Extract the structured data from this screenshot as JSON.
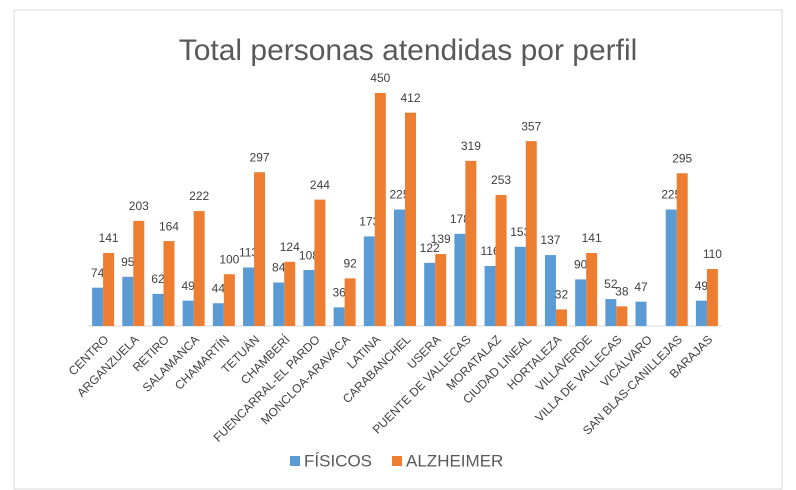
{
  "chart_data": {
    "type": "bar",
    "title": "Total personas atendidas por perfil",
    "categories": [
      "CENTRO",
      "ARGANZUELA",
      "RETIRO",
      "SALAMANCA",
      "CHAMARTÍN",
      "TETUÁN",
      "CHAMBERÍ",
      "FUENCARRAL-EL PARDO",
      "MONCLOA-ARAVACA",
      "LATINA",
      "CARABANCHEL",
      "USERA",
      "PUENTE DE VALLECAS",
      "MORATALAZ",
      "CIUDAD LINEAL",
      "HORTALEZA",
      "VILLAVERDE",
      "VILLA DE VALLECAS",
      "VICÁLVARO",
      "SAN BLAS-CANILLEJAS",
      "BARAJAS"
    ],
    "series": [
      {
        "name": "FÍSICOS",
        "color": "#5b9bd5",
        "values": [
          74,
          95,
          62,
          49,
          44,
          113,
          84,
          108,
          36,
          173,
          225,
          122,
          178,
          116,
          153,
          137,
          90,
          52,
          47,
          225,
          49
        ]
      },
      {
        "name": "ALZHEIMER",
        "color": "#ed7d31",
        "values": [
          141,
          203,
          164,
          222,
          100,
          297,
          124,
          244,
          92,
          450,
          412,
          139,
          319,
          253,
          357,
          32,
          141,
          38,
          null,
          295,
          110
        ]
      }
    ],
    "legend": "bottom"
  }
}
